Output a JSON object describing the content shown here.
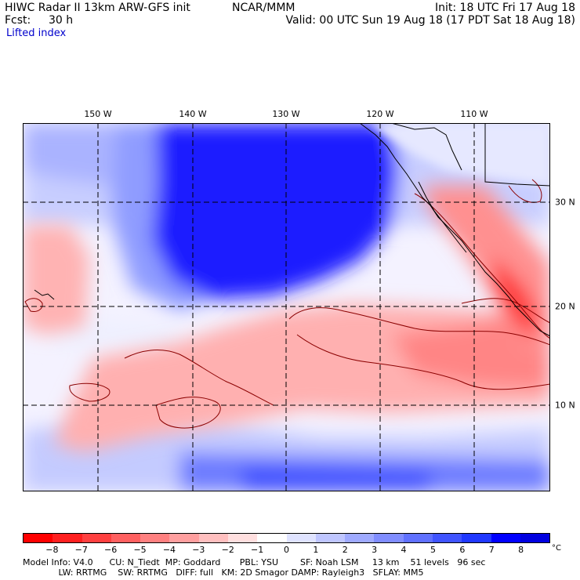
{
  "header": {
    "title": "HIWC Radar II 13km ARW-GFS init",
    "org": "NCAR/MMM",
    "init": "Init: 18 UTC Fri 17 Aug 18",
    "fcst_label": "Fcst:",
    "fcst_value": "30 h",
    "valid": "Valid: 00 UTC Sun 19 Aug 18 (17 PDT Sat 18 Aug 18)",
    "field": "Lifted index"
  },
  "axes": {
    "lon_labels": [
      "150 W",
      "140 W",
      "130 W",
      "120 W",
      "110 W"
    ],
    "lat_labels": [
      "30 N",
      "20 N",
      "10 N"
    ]
  },
  "colorbar": {
    "labels": [
      "−8",
      "−7",
      "−6",
      "−5",
      "−4",
      "−3",
      "−2",
      "−1",
      "0",
      "1",
      "2",
      "3",
      "4",
      "5",
      "6",
      "7",
      "8"
    ],
    "unit": "°C",
    "colors": [
      "#ff0000",
      "#ff2020",
      "#ff4040",
      "#ff6060",
      "#ff8080",
      "#ff9f9f",
      "#ffbfbf",
      "#ffdfdf",
      "#ffffff",
      "#dfe3ff",
      "#bfc6ff",
      "#9faaff",
      "#808dff",
      "#6071ff",
      "#4054ff",
      "#2038ff",
      "#0000ff",
      "#0000e0"
    ]
  },
  "footer": {
    "line1": "Model Info: V4.0      CU: N_Tiedt  MP: Goddard       PBL: YSU        SF: Noah LSM     13 km    51 levels   96 sec",
    "line2": "             LW: RRTMG    SW: RRTMG   DIFF: full   KM: 2D Smagor DAMP: Rayleigh3   SFLAY: MM5"
  }
}
